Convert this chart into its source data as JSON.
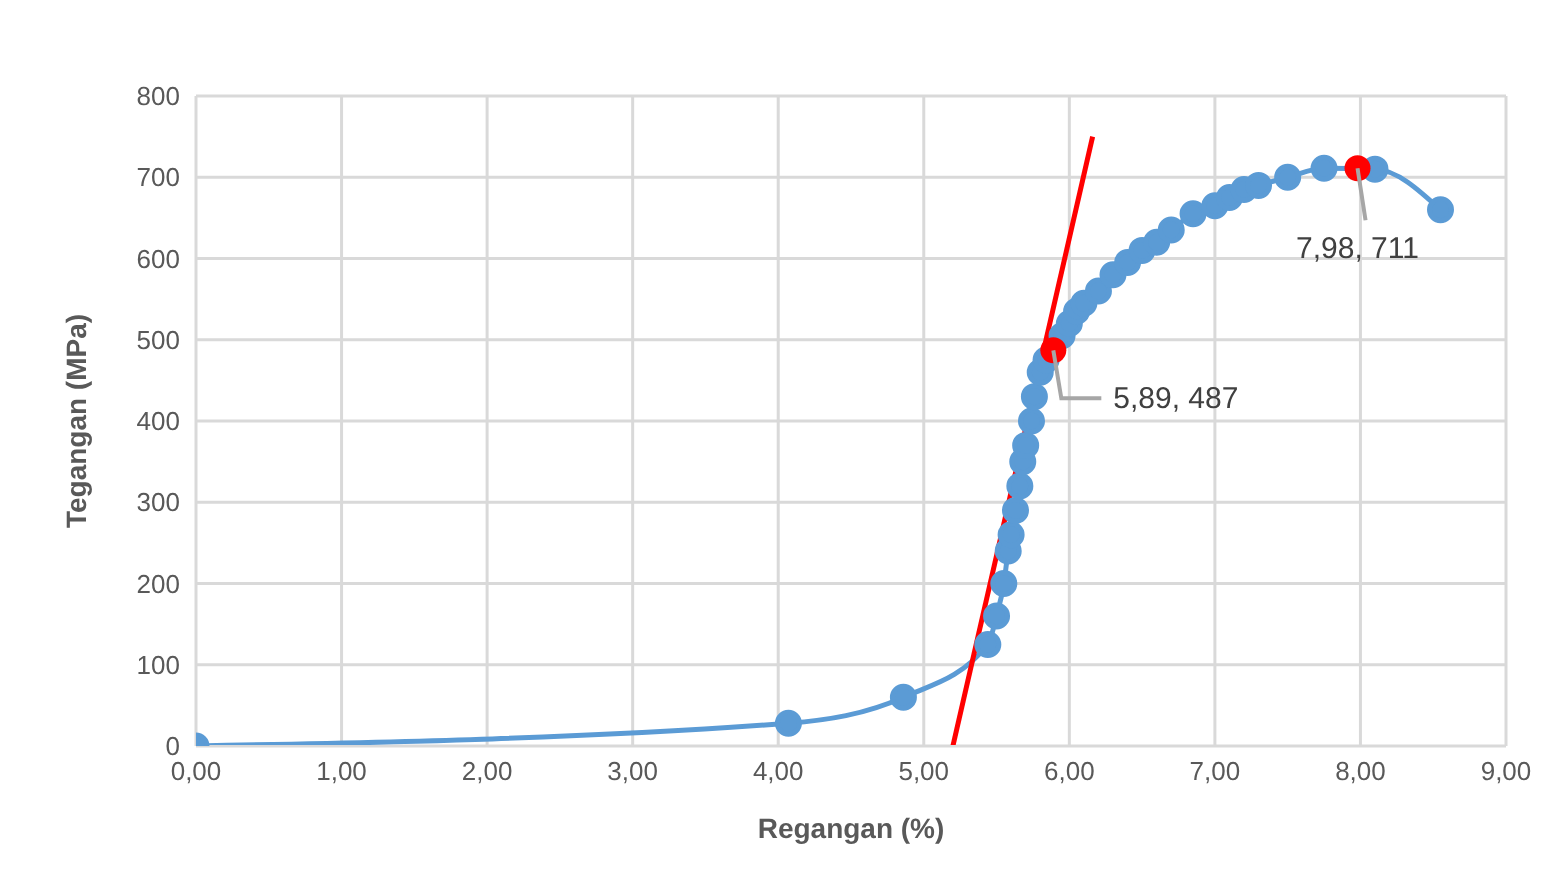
{
  "chart_data": {
    "type": "line",
    "xlabel": "Regangan (%)",
    "ylabel": "Tegangan (MPa)",
    "xlim": [
      0,
      9
    ],
    "xticks": [
      {
        "value": 0,
        "label": "0,00"
      },
      {
        "value": 1,
        "label": "1,00"
      },
      {
        "value": 2,
        "label": "2,00"
      },
      {
        "value": 3,
        "label": "3,00"
      },
      {
        "value": 4,
        "label": "4,00"
      },
      {
        "value": 5,
        "label": "5,00"
      },
      {
        "value": 6,
        "label": "6,00"
      },
      {
        "value": 7,
        "label": "7,00"
      },
      {
        "value": 8,
        "label": "8,00"
      },
      {
        "value": 9,
        "label": "9,00"
      }
    ],
    "ylim": [
      0,
      800
    ],
    "yticks": [
      0,
      100,
      200,
      300,
      400,
      500,
      600,
      700,
      800
    ],
    "grid": true,
    "marker": "circle",
    "line_style": "solid",
    "series": [
      {
        "type": "line",
        "color": "#5b9bd5",
        "x": [
          0,
          4.07,
          4.86,
          5.44,
          5.5,
          5.55,
          5.58,
          5.6,
          5.63,
          5.66,
          5.68,
          5.7,
          5.74,
          5.76,
          5.8,
          5.84,
          5.89,
          5.95,
          6.0,
          6.05,
          6.1,
          6.2,
          6.3,
          6.4,
          6.5,
          6.6,
          6.7,
          6.85,
          7.0,
          7.1,
          7.2,
          7.3,
          7.5,
          7.75,
          7.98,
          8.1,
          8.55
        ],
        "values": [
          0,
          28,
          60,
          125,
          160,
          200,
          240,
          260,
          290,
          320,
          350,
          370,
          400,
          430,
          460,
          475,
          null,
          505,
          520,
          535,
          545,
          560,
          580,
          595,
          610,
          620,
          635,
          655,
          665,
          675,
          685,
          690,
          700,
          711,
          null,
          710,
          660
        ]
      },
      {
        "type": "line",
        "color": "#ff0000",
        "marker": "none",
        "x": [
          5.2,
          6.16
        ],
        "values": [
          0,
          750
        ]
      },
      {
        "type": "scatter",
        "color": "#ff0000",
        "x": [
          5.89,
          7.98
        ],
        "values": [
          487,
          711
        ]
      }
    ],
    "annotations": [
      {
        "text": "5,89, 487",
        "x": 5.89,
        "y": 487
      },
      {
        "text": "7,98, 711",
        "x": 7.98,
        "y": 711
      }
    ]
  }
}
